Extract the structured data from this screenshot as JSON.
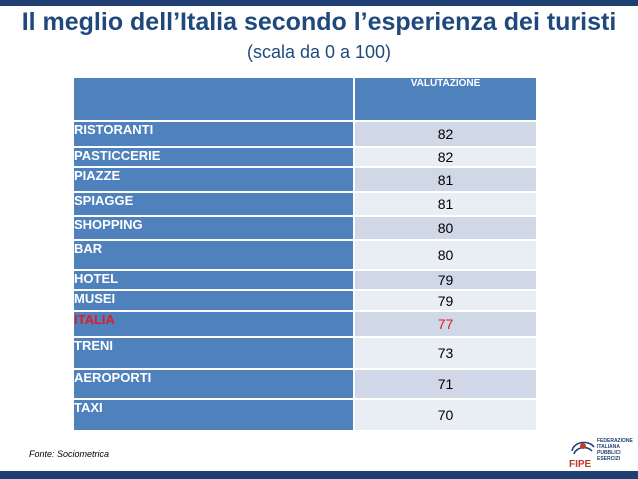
{
  "title": "Il meglio dell’Italia secondo l’esperienza dei turisti",
  "subtitle": "(scala da 0 a 100)",
  "source": "Fonte: Sociometrica",
  "logo": {
    "word": "FIPE",
    "caption": "FEDERAZIONE\nITALIANA\nPUBBLICI\nESERCIZI"
  },
  "colors": {
    "header_bg": "#4f81bd",
    "row_odd": "#d0d8e8",
    "row_even": "#e9edf4",
    "highlight": "#e11b22",
    "title": "#1f497d"
  },
  "chart_data": {
    "type": "table",
    "title": "Il meglio dell’Italia secondo l’esperienza dei turisti",
    "subtitle": "(scala da 0 a 100)",
    "column_header": "VALUTAZIONE",
    "rows": [
      {
        "label": "RISTORANTI",
        "value": 82
      },
      {
        "label": "PASTICCERIE",
        "value": 82
      },
      {
        "label": "PIAZZE",
        "value": 81
      },
      {
        "label": "SPIAGGE",
        "value": 81
      },
      {
        "label": "SHOPPING",
        "value": 80
      },
      {
        "label": "BAR",
        "value": 80
      },
      {
        "label": "HOTEL",
        "value": 79
      },
      {
        "label": "MUSEI",
        "value": 79
      },
      {
        "label": "ITALIA",
        "value": 77,
        "highlight": true
      },
      {
        "label": "TRENI",
        "value": 73
      },
      {
        "label": "AEROPORTI",
        "value": 71
      },
      {
        "label": "TAXI",
        "value": 70
      }
    ]
  }
}
